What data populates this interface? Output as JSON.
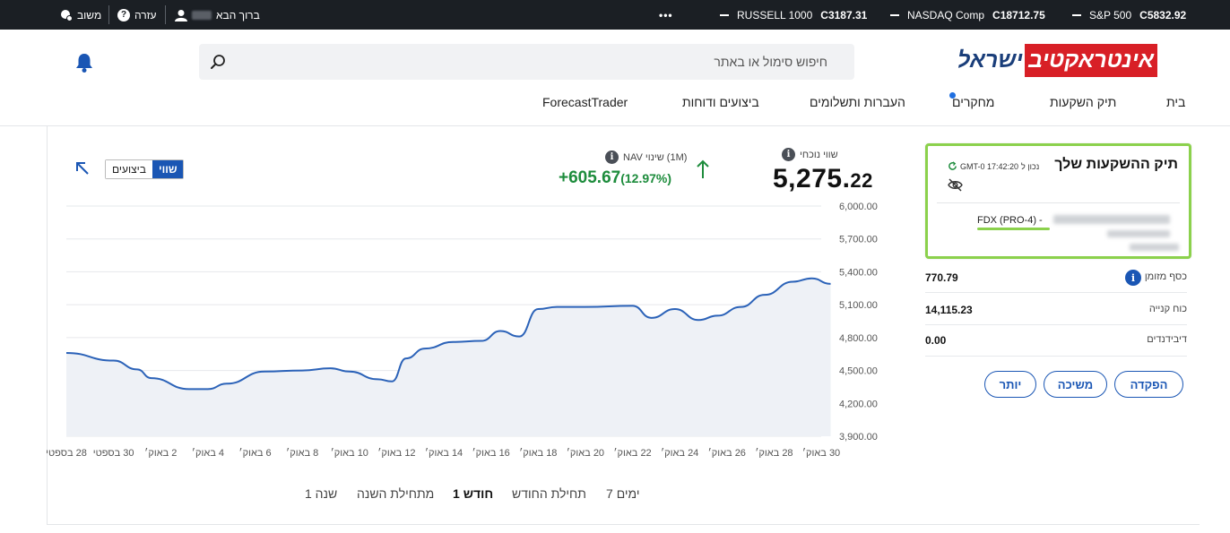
{
  "topbar": {
    "tickers": [
      {
        "name": "S&P 500",
        "value": "C5832.92"
      },
      {
        "name": "NASDAQ Comp",
        "value": "C18712.75"
      },
      {
        "name": "RUSSELL 1000",
        "value": "C3187.31"
      }
    ],
    "more_label": "•••",
    "welcome_label": "ברוך הבא",
    "help_label": "עזרה",
    "feedback_label": "משוב"
  },
  "header": {
    "logo_main": "אינטראקטיב",
    "logo_sub": "ישראל",
    "search_placeholder": "חיפוש סימול או באתר"
  },
  "nav": {
    "items": [
      "בית",
      "תיק השקעות",
      "מחקרים",
      "העברות ותשלומים",
      "ביצועים ודוחות",
      "ForecastTrader"
    ]
  },
  "summary": {
    "current_label": "שווי נוכחי",
    "current_int": "5,275.",
    "current_dec": "22",
    "nav_change_label": "NAV שינוי (1M)",
    "nav_change_value": "+605.67",
    "nav_change_pct": "(12.97%)",
    "toggle_value": "שווי",
    "toggle_perf": "ביצועים"
  },
  "chart_data": {
    "type": "area",
    "y_ticks": [
      "6,000.00",
      "5,700.00",
      "5,400.00",
      "5,100.00",
      "4,800.00",
      "4,500.00",
      "4,200.00",
      "3,900.00"
    ],
    "ylim": [
      3900,
      6000
    ],
    "x_ticks": [
      "28 בספטי",
      "30 בספטי",
      "2 באוק׳",
      "4 באוק׳",
      "6 באוק׳",
      "8 באוק׳",
      "10 באוק׳",
      "12 באוק׳",
      "14 באוק׳",
      "16 באוק׳",
      "18 באוק׳",
      "20 באוק׳",
      "22 באוק׳",
      "24 באוק׳",
      "26 באוק׳",
      "28 באוק׳",
      "30 באוק׳"
    ],
    "x": [
      0,
      1,
      1.5,
      1.8,
      2.6,
      3.0,
      3.4,
      4.2,
      5.0,
      5.6,
      6.0,
      6.6,
      6.9,
      7.2,
      7.6,
      8.2,
      8.8,
      9.2,
      9.6,
      10.0,
      10.4,
      11.0,
      12.0,
      12.4,
      12.9,
      13.4,
      13.8,
      14.3,
      14.8,
      15.4,
      15.8,
      16.2
    ],
    "values": [
      4660,
      4590,
      4510,
      4430,
      4330,
      4330,
      4380,
      4490,
      4500,
      4520,
      4490,
      4420,
      4400,
      4610,
      4700,
      4760,
      4770,
      4860,
      4810,
      5060,
      5080,
      5080,
      5090,
      4980,
      5060,
      4960,
      5000,
      5080,
      5190,
      5310,
      5340,
      5290
    ],
    "grid": true
  },
  "ranges": [
    "7 ימים",
    "תחילת החודש",
    "1 חודש",
    "מתחילת השנה",
    "שנה 1"
  ],
  "active_range": "1 חודש",
  "account": {
    "title": "תיק ההשקעות שלך",
    "time": "GMT-0 17:42:20",
    "time_prefix": "נכון ל",
    "id_text": "FDX (PRO-4) -"
  },
  "kv": [
    {
      "label": "כסף מזומן",
      "value": "770.79"
    },
    {
      "label": "כוח קנייה",
      "value": "14,115.23"
    },
    {
      "label": "דיבידנדים",
      "value": "0.00"
    }
  ],
  "buttons": {
    "deposit": "הפקדה",
    "withdraw": "משיכה",
    "more": "יותר"
  },
  "colors": {
    "accent": "#1a56b4",
    "positive": "#1d8c3c",
    "logo_red": "#d81f26",
    "highlight": "#8bd14c"
  }
}
